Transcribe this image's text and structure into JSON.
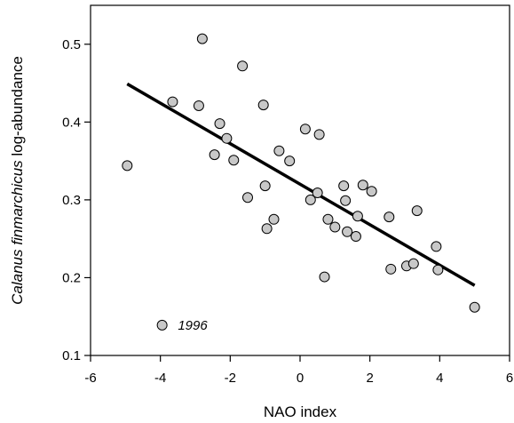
{
  "chart_data": {
    "type": "scatter",
    "title": "",
    "xlabel": "NAO index",
    "ylabel_italic": "Calanus finmarchicus",
    "ylabel_rest": " log-abundance",
    "xlim": [
      -6,
      6
    ],
    "ylim": [
      0.1,
      0.55
    ],
    "xticks": [
      -6,
      -4,
      -2,
      0,
      2,
      4,
      6
    ],
    "yticks": [
      0.1,
      0.2,
      0.3,
      0.4,
      0.5
    ],
    "xtick_labels": [
      "-6",
      "-4",
      "-2",
      "0",
      "2",
      "4",
      "6"
    ],
    "ytick_labels": [
      "0.1",
      "0.2",
      "0.3",
      "0.4",
      "0.5"
    ],
    "grid": false,
    "point_fill": "#c8c8c8",
    "point_stroke": "#000000",
    "fit_color": "#000000",
    "points": [
      {
        "x": -4.95,
        "y": 0.344
      },
      {
        "x": -3.95,
        "y": 0.139
      },
      {
        "x": -3.65,
        "y": 0.426
      },
      {
        "x": -2.9,
        "y": 0.421
      },
      {
        "x": -2.8,
        "y": 0.507
      },
      {
        "x": -2.45,
        "y": 0.358
      },
      {
        "x": -2.3,
        "y": 0.398
      },
      {
        "x": -2.1,
        "y": 0.379
      },
      {
        "x": -1.9,
        "y": 0.351
      },
      {
        "x": -1.65,
        "y": 0.472
      },
      {
        "x": -1.5,
        "y": 0.303
      },
      {
        "x": -1.05,
        "y": 0.422
      },
      {
        "x": -1.0,
        "y": 0.318
      },
      {
        "x": -0.95,
        "y": 0.263
      },
      {
        "x": -0.75,
        "y": 0.275
      },
      {
        "x": -0.6,
        "y": 0.363
      },
      {
        "x": -0.3,
        "y": 0.35
      },
      {
        "x": 0.15,
        "y": 0.391
      },
      {
        "x": 0.3,
        "y": 0.3
      },
      {
        "x": 0.5,
        "y": 0.309
      },
      {
        "x": 0.55,
        "y": 0.384
      },
      {
        "x": 0.7,
        "y": 0.201
      },
      {
        "x": 0.8,
        "y": 0.275
      },
      {
        "x": 1.0,
        "y": 0.265
      },
      {
        "x": 1.25,
        "y": 0.318
      },
      {
        "x": 1.3,
        "y": 0.299
      },
      {
        "x": 1.35,
        "y": 0.259
      },
      {
        "x": 1.6,
        "y": 0.253
      },
      {
        "x": 1.65,
        "y": 0.279
      },
      {
        "x": 1.8,
        "y": 0.319
      },
      {
        "x": 2.05,
        "y": 0.311
      },
      {
        "x": 2.55,
        "y": 0.278
      },
      {
        "x": 2.6,
        "y": 0.211
      },
      {
        "x": 3.05,
        "y": 0.215
      },
      {
        "x": 3.25,
        "y": 0.218
      },
      {
        "x": 3.35,
        "y": 0.286
      },
      {
        "x": 3.9,
        "y": 0.24
      },
      {
        "x": 3.95,
        "y": 0.21
      },
      {
        "x": 5.0,
        "y": 0.162
      }
    ],
    "fit_line": {
      "x": [
        -4.95,
        5.0
      ],
      "y": [
        0.449,
        0.19
      ]
    },
    "annotations": [
      {
        "text": "1996",
        "x": -3.5,
        "y": 0.139
      }
    ]
  }
}
